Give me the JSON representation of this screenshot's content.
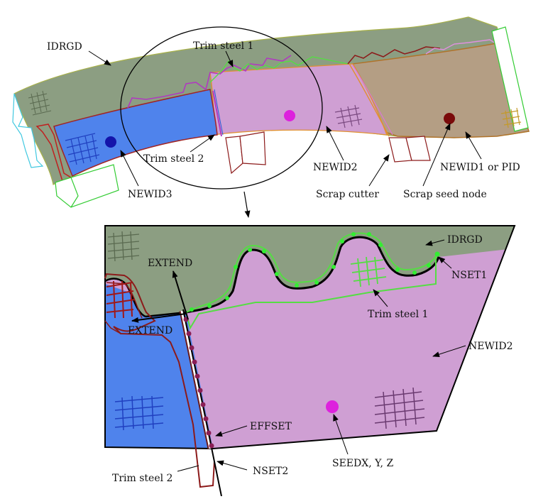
{
  "top_view": {
    "labels": {
      "idrgd": "IDRGD",
      "trim_steel_1": "Trim steel 1",
      "trim_steel_2": "Trim steel 2",
      "newid3": "NEWID3",
      "newid2": "NEWID2",
      "newid1_or_pid": "NEWID1 or PID",
      "scrap_cutter": "Scrap cutter",
      "scrap_seed_node": "Scrap seed node"
    }
  },
  "detail_view": {
    "labels": {
      "idrgd": "IDRGD",
      "extend_top": "EXTEND",
      "extend_left": "EXTEND",
      "nset1": "NSET1",
      "trim_steel_1": "Trim steel 1",
      "newid2": "NEWID2",
      "effset": "EFFSET",
      "seed": "SEEDX, Y, Z",
      "trim_steel_2": "Trim steel 2",
      "nset2": "NSET2"
    }
  },
  "colors": {
    "rigid_green": "#8c9e82",
    "newid2_purple": "#cf9fd3",
    "newid3_blue": "#4f83ec",
    "newid1_tan": "#b49e84",
    "trim_green": "#55dd44",
    "trim_purple": "#b03ac0",
    "trim_red": "#8c1a1a",
    "node_green": "#33ee33",
    "node_maroon": "#8a1f55",
    "seed_magenta": "#dd22dd",
    "seed_darkred": "#7a0a0a",
    "seed_blue": "#1414aa"
  }
}
